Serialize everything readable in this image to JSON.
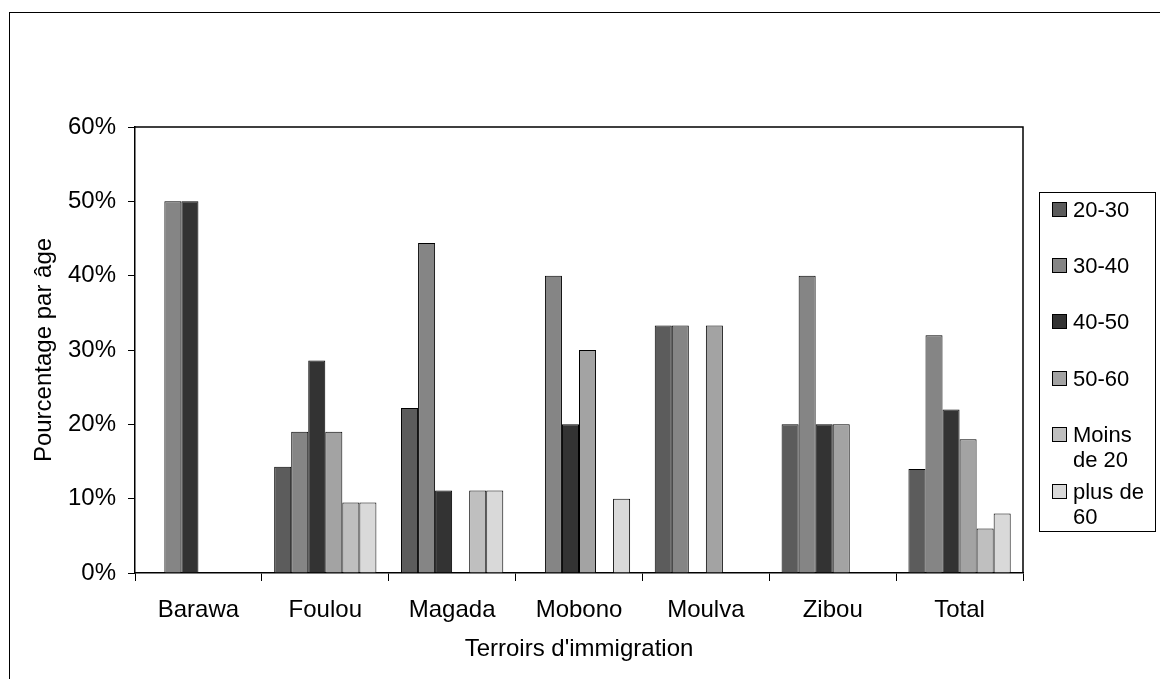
{
  "chart_data": {
    "type": "bar",
    "xlabel": "Terroirs d'immigration",
    "ylabel": "Pourcentage par âge",
    "categories": [
      "Barawa",
      "Foulou",
      "Magada",
      "Mobono",
      "Moulva",
      "Zibou",
      "Total"
    ],
    "series": [
      {
        "name": "20-30",
        "color": "#5c5c5c",
        "values": [
          null,
          14.3,
          22.2,
          null,
          33.3,
          20,
          14
        ]
      },
      {
        "name": "30-40",
        "color": "#858585",
        "values": [
          50,
          19,
          44.4,
          40,
          33.3,
          40,
          32
        ]
      },
      {
        "name": "40-50",
        "color": "#333333",
        "values": [
          50,
          28.6,
          11.1,
          20,
          null,
          20,
          22
        ]
      },
      {
        "name": "50-60",
        "color": "#a3a3a3",
        "values": [
          null,
          19,
          null,
          30,
          33.3,
          20,
          18
        ]
      },
      {
        "name": "Moins de 20",
        "color": "#bfbfbf",
        "values": [
          null,
          9.5,
          11.1,
          null,
          null,
          null,
          6
        ]
      },
      {
        "name": "plus de 60",
        "color": "#d9d9d9",
        "values": [
          null,
          9.5,
          11.1,
          10,
          null,
          null,
          8
        ]
      }
    ],
    "ylim": [
      0,
      60
    ],
    "yticks": [
      {
        "value": 0,
        "label": "0%"
      },
      {
        "value": 10,
        "label": "10%"
      },
      {
        "value": 20,
        "label": "20%"
      },
      {
        "value": 30,
        "label": "30%"
      },
      {
        "value": 40,
        "label": "40%"
      },
      {
        "value": 50,
        "label": "50%"
      },
      {
        "value": 60,
        "label": "60%"
      }
    ],
    "legend": "right"
  }
}
